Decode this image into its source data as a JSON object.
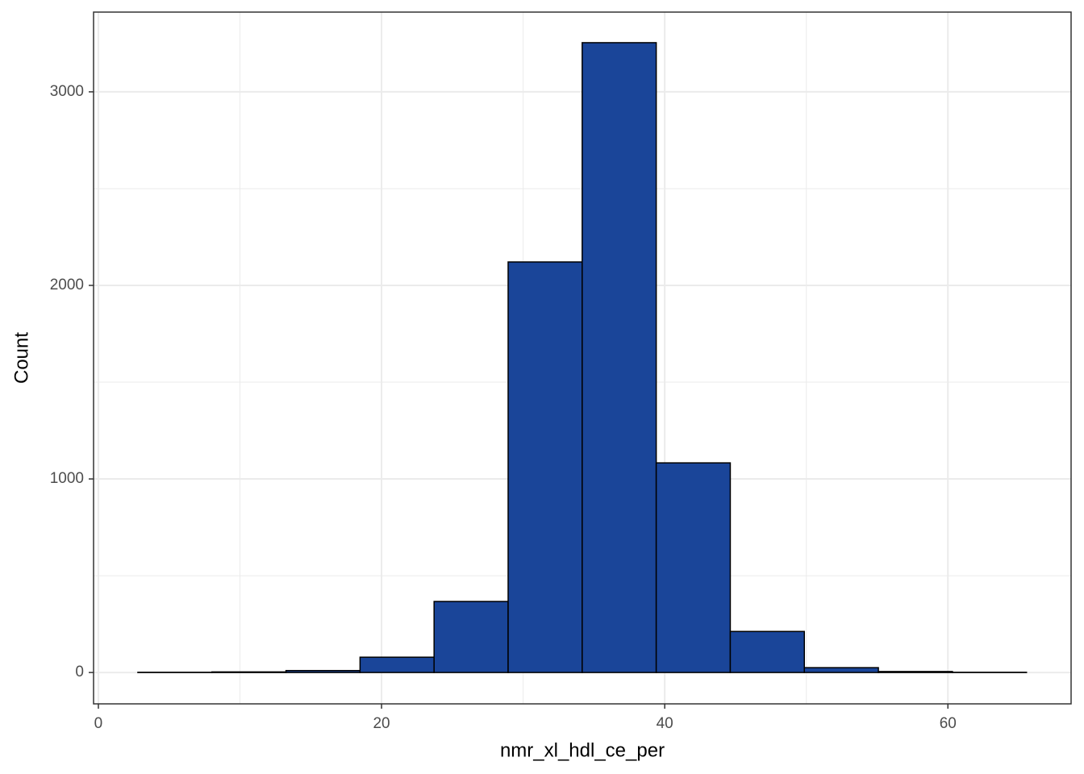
{
  "chart_data": {
    "type": "histogram",
    "x_label": "nmr_xl_hdl_ce_per",
    "y_label": "Count",
    "bins": [
      2.79,
      8.02,
      13.25,
      18.48,
      23.71,
      28.94,
      34.17,
      39.4,
      44.63,
      49.86,
      55.09,
      60.32,
      65.55
    ],
    "counts": [
      1,
      3,
      10,
      79,
      367,
      2121,
      3254,
      1083,
      212,
      25,
      5,
      1
    ],
    "color": "#1a4599",
    "edge_color": "#000000",
    "xlim": [
      -0.34,
      68.7
    ],
    "ylim": [
      -162,
      3412
    ],
    "xticks": [
      0,
      20,
      40,
      60
    ],
    "yticks": [
      0,
      1000,
      2000,
      3000
    ],
    "x_minor_grid": [
      10,
      30,
      50
    ],
    "y_minor_grid": [
      500,
      1500,
      2500
    ],
    "grid": true
  }
}
